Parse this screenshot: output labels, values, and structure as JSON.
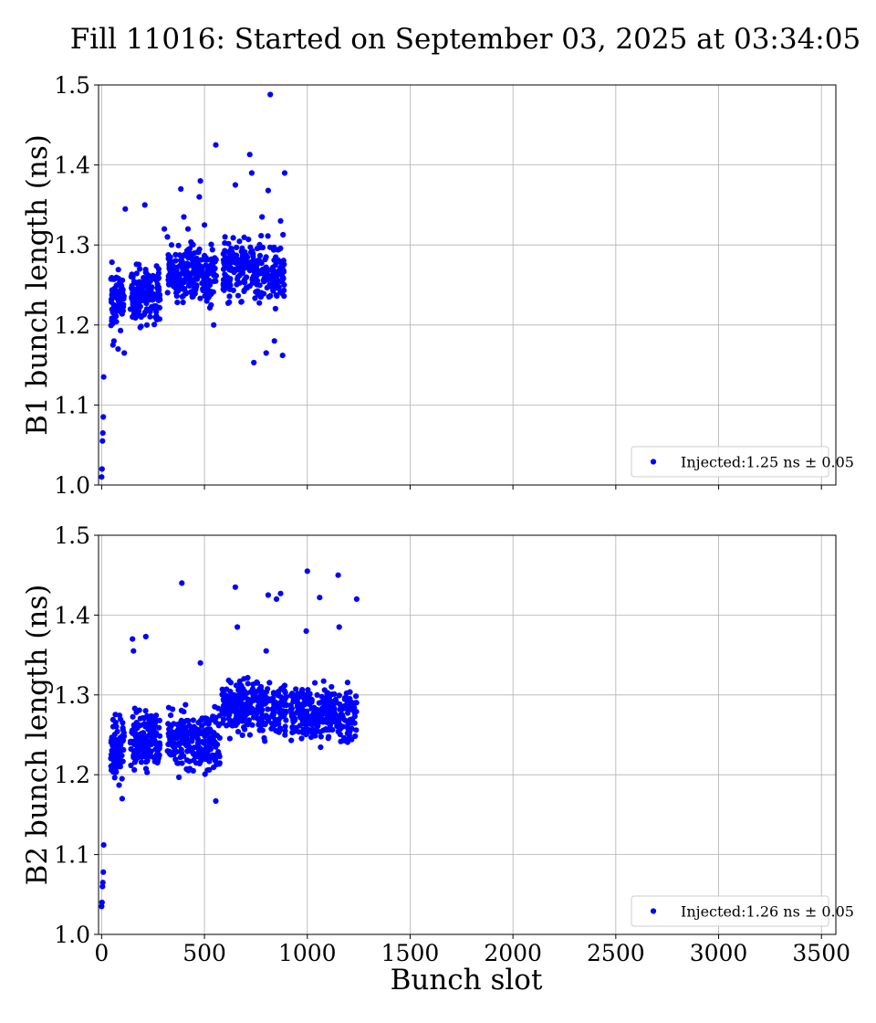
{
  "chart_data": [
    {
      "type": "scatter",
      "title": "Fill 11016: Started on September 03, 2025 at 03:34:05",
      "ylabel": "B1 bunch length (ns)",
      "xlabel": "",
      "xlim": [
        -15,
        3570
      ],
      "ylim": [
        1.0,
        1.5
      ],
      "xticks": [
        0,
        500,
        1000,
        1500,
        2000,
        2500,
        3000,
        3500
      ],
      "xtick_labels_visible": false,
      "yticks": [
        1.0,
        1.1,
        1.2,
        1.3,
        1.4,
        1.5
      ],
      "ytick_labels": [
        "1.0",
        "1.1",
        "1.2",
        "1.3",
        "1.4",
        "1.5"
      ],
      "grid": true,
      "legend_position": "bottom-right",
      "series": [
        {
          "name": "Injected:1.25 ns ± 0.05",
          "color": "#0000ff",
          "marker": "circle",
          "x": [
            0,
            2,
            4,
            6,
            8,
            10,
            55,
            60,
            80,
            110,
            115,
            150,
            210,
            220,
            305,
            320,
            340,
            385,
            400,
            420,
            440,
            475,
            480,
            500,
            545,
            555,
            600,
            650,
            720,
            730,
            740,
            780,
            800,
            810,
            820,
            840,
            870,
            880,
            890
          ],
          "y": [
            1.01,
            1.02,
            1.055,
            1.065,
            1.085,
            1.135,
            1.175,
            1.18,
            1.17,
            1.165,
            1.345,
            1.21,
            1.35,
            1.2,
            1.32,
            1.31,
            1.3,
            1.37,
            1.335,
            1.32,
            1.3,
            1.36,
            1.38,
            1.325,
            1.2,
            1.425,
            1.31,
            1.375,
            1.413,
            1.39,
            1.153,
            1.335,
            1.165,
            1.368,
            1.488,
            1.18,
            1.33,
            1.162,
            1.39
          ],
          "clusters": [
            {
              "x_range": [
                45,
                110
              ],
              "y_mean": 1.235,
              "y_spread": 0.05,
              "count": 80
            },
            {
              "x_range": [
                140,
                285
              ],
              "y_mean": 1.24,
              "y_spread": 0.05,
              "count": 160
            },
            {
              "x_range": [
                320,
                560
              ],
              "y_mean": 1.262,
              "y_spread": 0.052,
              "count": 230
            },
            {
              "x_range": [
                590,
                890
              ],
              "y_mean": 1.268,
              "y_spread": 0.055,
              "count": 270
            }
          ]
        }
      ]
    },
    {
      "type": "scatter",
      "title": "",
      "ylabel": "B2 bunch length (ns)",
      "xlabel": "Bunch slot",
      "xlim": [
        -15,
        3570
      ],
      "ylim": [
        1.0,
        1.5
      ],
      "xticks": [
        0,
        500,
        1000,
        1500,
        2000,
        2500,
        3000,
        3500
      ],
      "xtick_labels": [
        "0",
        "500",
        "1000",
        "1500",
        "2000",
        "2500",
        "3000",
        "3500"
      ],
      "yticks": [
        1.0,
        1.1,
        1.2,
        1.3,
        1.4,
        1.5
      ],
      "ytick_labels": [
        "1.0",
        "1.1",
        "1.2",
        "1.3",
        "1.4",
        "1.5"
      ],
      "grid": true,
      "legend_position": "bottom-right",
      "series": [
        {
          "name": "Injected:1.26 ns ± 0.05",
          "color": "#0000ff",
          "marker": "circle",
          "x": [
            0,
            2,
            4,
            6,
            8,
            10,
            100,
            150,
            155,
            215,
            390,
            480,
            555,
            650,
            660,
            800,
            810,
            850,
            870,
            995,
            1000,
            1060,
            1150,
            1155,
            1240
          ],
          "y": [
            1.035,
            1.04,
            1.06,
            1.065,
            1.078,
            1.112,
            1.17,
            1.37,
            1.355,
            1.373,
            1.44,
            1.34,
            1.167,
            1.435,
            1.385,
            1.355,
            1.425,
            1.42,
            1.427,
            1.38,
            1.455,
            1.422,
            1.45,
            1.385,
            1.42
          ],
          "clusters": [
            {
              "x_range": [
                45,
                110
              ],
              "y_mean": 1.235,
              "y_spread": 0.055,
              "count": 85
            },
            {
              "x_range": [
                140,
                285
              ],
              "y_mean": 1.245,
              "y_spread": 0.055,
              "count": 160
            },
            {
              "x_range": [
                320,
                575
              ],
              "y_mean": 1.24,
              "y_spread": 0.055,
              "count": 230
            },
            {
              "x_range": [
                585,
                900
              ],
              "y_mean": 1.285,
              "y_spread": 0.05,
              "count": 280
            },
            {
              "x_range": [
                920,
                1240
              ],
              "y_mean": 1.275,
              "y_spread": 0.05,
              "count": 300
            }
          ]
        }
      ]
    }
  ]
}
